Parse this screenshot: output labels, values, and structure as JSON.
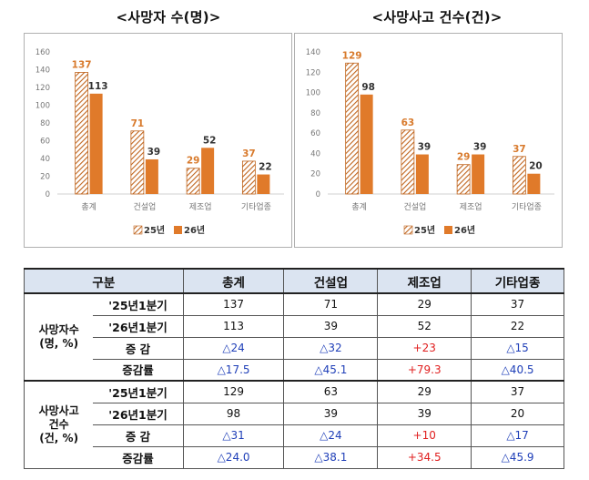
{
  "charts_header": {
    "left_title": "<사망자 수(명)>",
    "right_title": "<사망사고 건수(건)>"
  },
  "colors": {
    "series_25_stroke": "#c0651e",
    "series_26_fill": "#e07a2a",
    "table_header_bg": "#dbe4f1",
    "negative_change": "#1f3fb8",
    "positive_change": "#e02020"
  },
  "chart_data": [
    {
      "type": "bar",
      "title": "<사망자 수(명)>",
      "categories": [
        "총계",
        "건설업",
        "제조업",
        "기타업종"
      ],
      "series": [
        {
          "name": "25년",
          "values": [
            137,
            71,
            29,
            37
          ]
        },
        {
          "name": "26년",
          "values": [
            113,
            39,
            52,
            22
          ]
        }
      ],
      "ylim": [
        0,
        160
      ],
      "yticks": [
        0,
        20,
        40,
        60,
        80,
        100,
        120,
        140,
        160
      ],
      "xlabel": "",
      "ylabel": "",
      "legend": [
        "25년",
        "26년"
      ],
      "legend_position": "bottom"
    },
    {
      "type": "bar",
      "title": "<사망사고 건수(건)>",
      "categories": [
        "총계",
        "건설업",
        "제조업",
        "기타업종"
      ],
      "series": [
        {
          "name": "25년",
          "values": [
            129,
            63,
            29,
            37
          ]
        },
        {
          "name": "26년",
          "values": [
            98,
            39,
            39,
            20
          ]
        }
      ],
      "ylim": [
        0,
        140
      ],
      "yticks": [
        0,
        20,
        40,
        60,
        80,
        100,
        120,
        140
      ],
      "xlabel": "",
      "ylabel": "",
      "legend": [
        "25년",
        "26년"
      ],
      "legend_position": "bottom"
    }
  ],
  "table": {
    "headers": [
      "구분",
      "총계",
      "건설업",
      "제조업",
      "기타업종"
    ],
    "groups": [
      {
        "label_lines": [
          "사망자수",
          "(명, %)"
        ],
        "rows": [
          {
            "label": "'25년1분기",
            "values": [
              "137",
              "71",
              "29",
              "37"
            ],
            "kind": "plain"
          },
          {
            "label": "'26년1분기",
            "values": [
              "113",
              "39",
              "52",
              "22"
            ],
            "kind": "plain"
          },
          {
            "label": "증 감",
            "values": [
              "△24",
              "△32",
              "+23",
              "△15"
            ],
            "kind": "change"
          },
          {
            "label": "증감률",
            "values": [
              "△17.5",
              "△45.1",
              "+79.3",
              "△40.5"
            ],
            "kind": "change"
          }
        ]
      },
      {
        "label_lines": [
          "사망사고",
          "건수",
          "(건, %)"
        ],
        "rows": [
          {
            "label": "'25년1분기",
            "values": [
              "129",
              "63",
              "29",
              "37"
            ],
            "kind": "plain"
          },
          {
            "label": "'26년1분기",
            "values": [
              "98",
              "39",
              "39",
              "20"
            ],
            "kind": "plain"
          },
          {
            "label": "증 감",
            "values": [
              "△31",
              "△24",
              "+10",
              "△17"
            ],
            "kind": "change"
          },
          {
            "label": "증감률",
            "values": [
              "△24.0",
              "△38.1",
              "+34.5",
              "△45.9"
            ],
            "kind": "change"
          }
        ]
      }
    ]
  }
}
